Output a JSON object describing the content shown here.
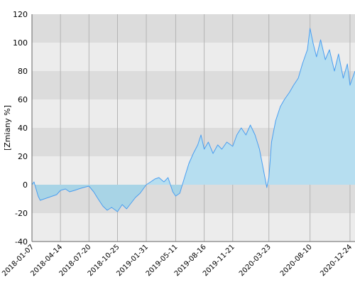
{
  "chart_data": {
    "type": "area",
    "title": "",
    "xlabel": "",
    "ylabel": "[Zmiany %]",
    "ylim": [
      -40,
      120
    ],
    "yticks": [
      -40,
      -20,
      0,
      20,
      40,
      60,
      80,
      100,
      120
    ],
    "xlim": [
      "2018-01-07",
      "2021-01-10"
    ],
    "xticks": [
      "2018-01-07",
      "2018-04-14",
      "2018-07-20",
      "2018-10-25",
      "2019-01-31",
      "2019-05-11",
      "2019-08-16",
      "2019-11-21",
      "2020-03-23",
      "2020-08-10",
      "2020-12-24"
    ],
    "grid": true,
    "legend": "none",
    "colors": {
      "band_dark": "#dcdcdc",
      "band_light": "#ececec",
      "line": "#4a9ef0",
      "fill_positive": "#b6def0",
      "fill_negative": "#a8d4e6",
      "vgrid": "#b4b4b4",
      "axis": "#666666"
    },
    "series": [
      {
        "x": [
          "2018-01-07",
          "2018-01-14",
          "2018-01-21",
          "2018-01-28",
          "2018-02-04",
          "2018-02-18",
          "2018-03-04",
          "2018-03-18",
          "2018-04-01",
          "2018-04-14",
          "2018-05-01",
          "2018-05-15",
          "2018-06-01",
          "2018-06-15",
          "2018-07-01",
          "2018-07-20",
          "2018-08-05",
          "2018-08-20",
          "2018-09-05",
          "2018-09-20",
          "2018-10-05",
          "2018-10-25",
          "2018-11-10",
          "2018-11-25",
          "2018-12-10",
          "2018-12-25",
          "2019-01-10",
          "2019-01-31",
          "2019-02-15",
          "2019-03-01",
          "2019-03-15",
          "2019-04-01",
          "2019-04-15",
          "2019-05-01",
          "2019-05-11",
          "2019-05-25",
          "2019-06-10",
          "2019-06-25",
          "2019-07-10",
          "2019-07-25",
          "2019-08-05",
          "2019-08-16",
          "2019-08-30",
          "2019-09-15",
          "2019-10-01",
          "2019-10-15",
          "2019-11-01",
          "2019-11-21",
          "2019-12-05",
          "2019-12-20",
          "2020-01-05",
          "2020-01-20",
          "2020-02-05",
          "2020-02-20",
          "2020-03-05",
          "2020-03-16",
          "2020-03-23",
          "2020-04-01",
          "2020-04-15",
          "2020-05-01",
          "2020-05-15",
          "2020-06-01",
          "2020-06-15",
          "2020-07-01",
          "2020-07-15",
          "2020-08-01",
          "2020-08-10",
          "2020-08-20",
          "2020-09-01",
          "2020-09-15",
          "2020-10-01",
          "2020-10-15",
          "2020-11-01",
          "2020-11-15",
          "2020-12-01",
          "2020-12-15",
          "2020-12-24",
          "2021-01-10"
        ],
        "y": [
          0,
          2,
          -3,
          -8,
          -11,
          -10,
          -9,
          -8,
          -7,
          -4,
          -3,
          -5,
          -4,
          -3,
          -2,
          -1,
          -5,
          -10,
          -15,
          -18,
          -16,
          -19,
          -14,
          -17,
          -13,
          -9,
          -6,
          0,
          2,
          4,
          5,
          2,
          5,
          -5,
          -8,
          -6,
          5,
          15,
          22,
          28,
          35,
          25,
          30,
          22,
          28,
          25,
          30,
          27,
          35,
          40,
          35,
          42,
          35,
          25,
          10,
          -2,
          5,
          30,
          45,
          55,
          60,
          65,
          70,
          75,
          85,
          95,
          110,
          100,
          90,
          102,
          88,
          95,
          80,
          92,
          75,
          85,
          70,
          80
        ]
      }
    ]
  }
}
